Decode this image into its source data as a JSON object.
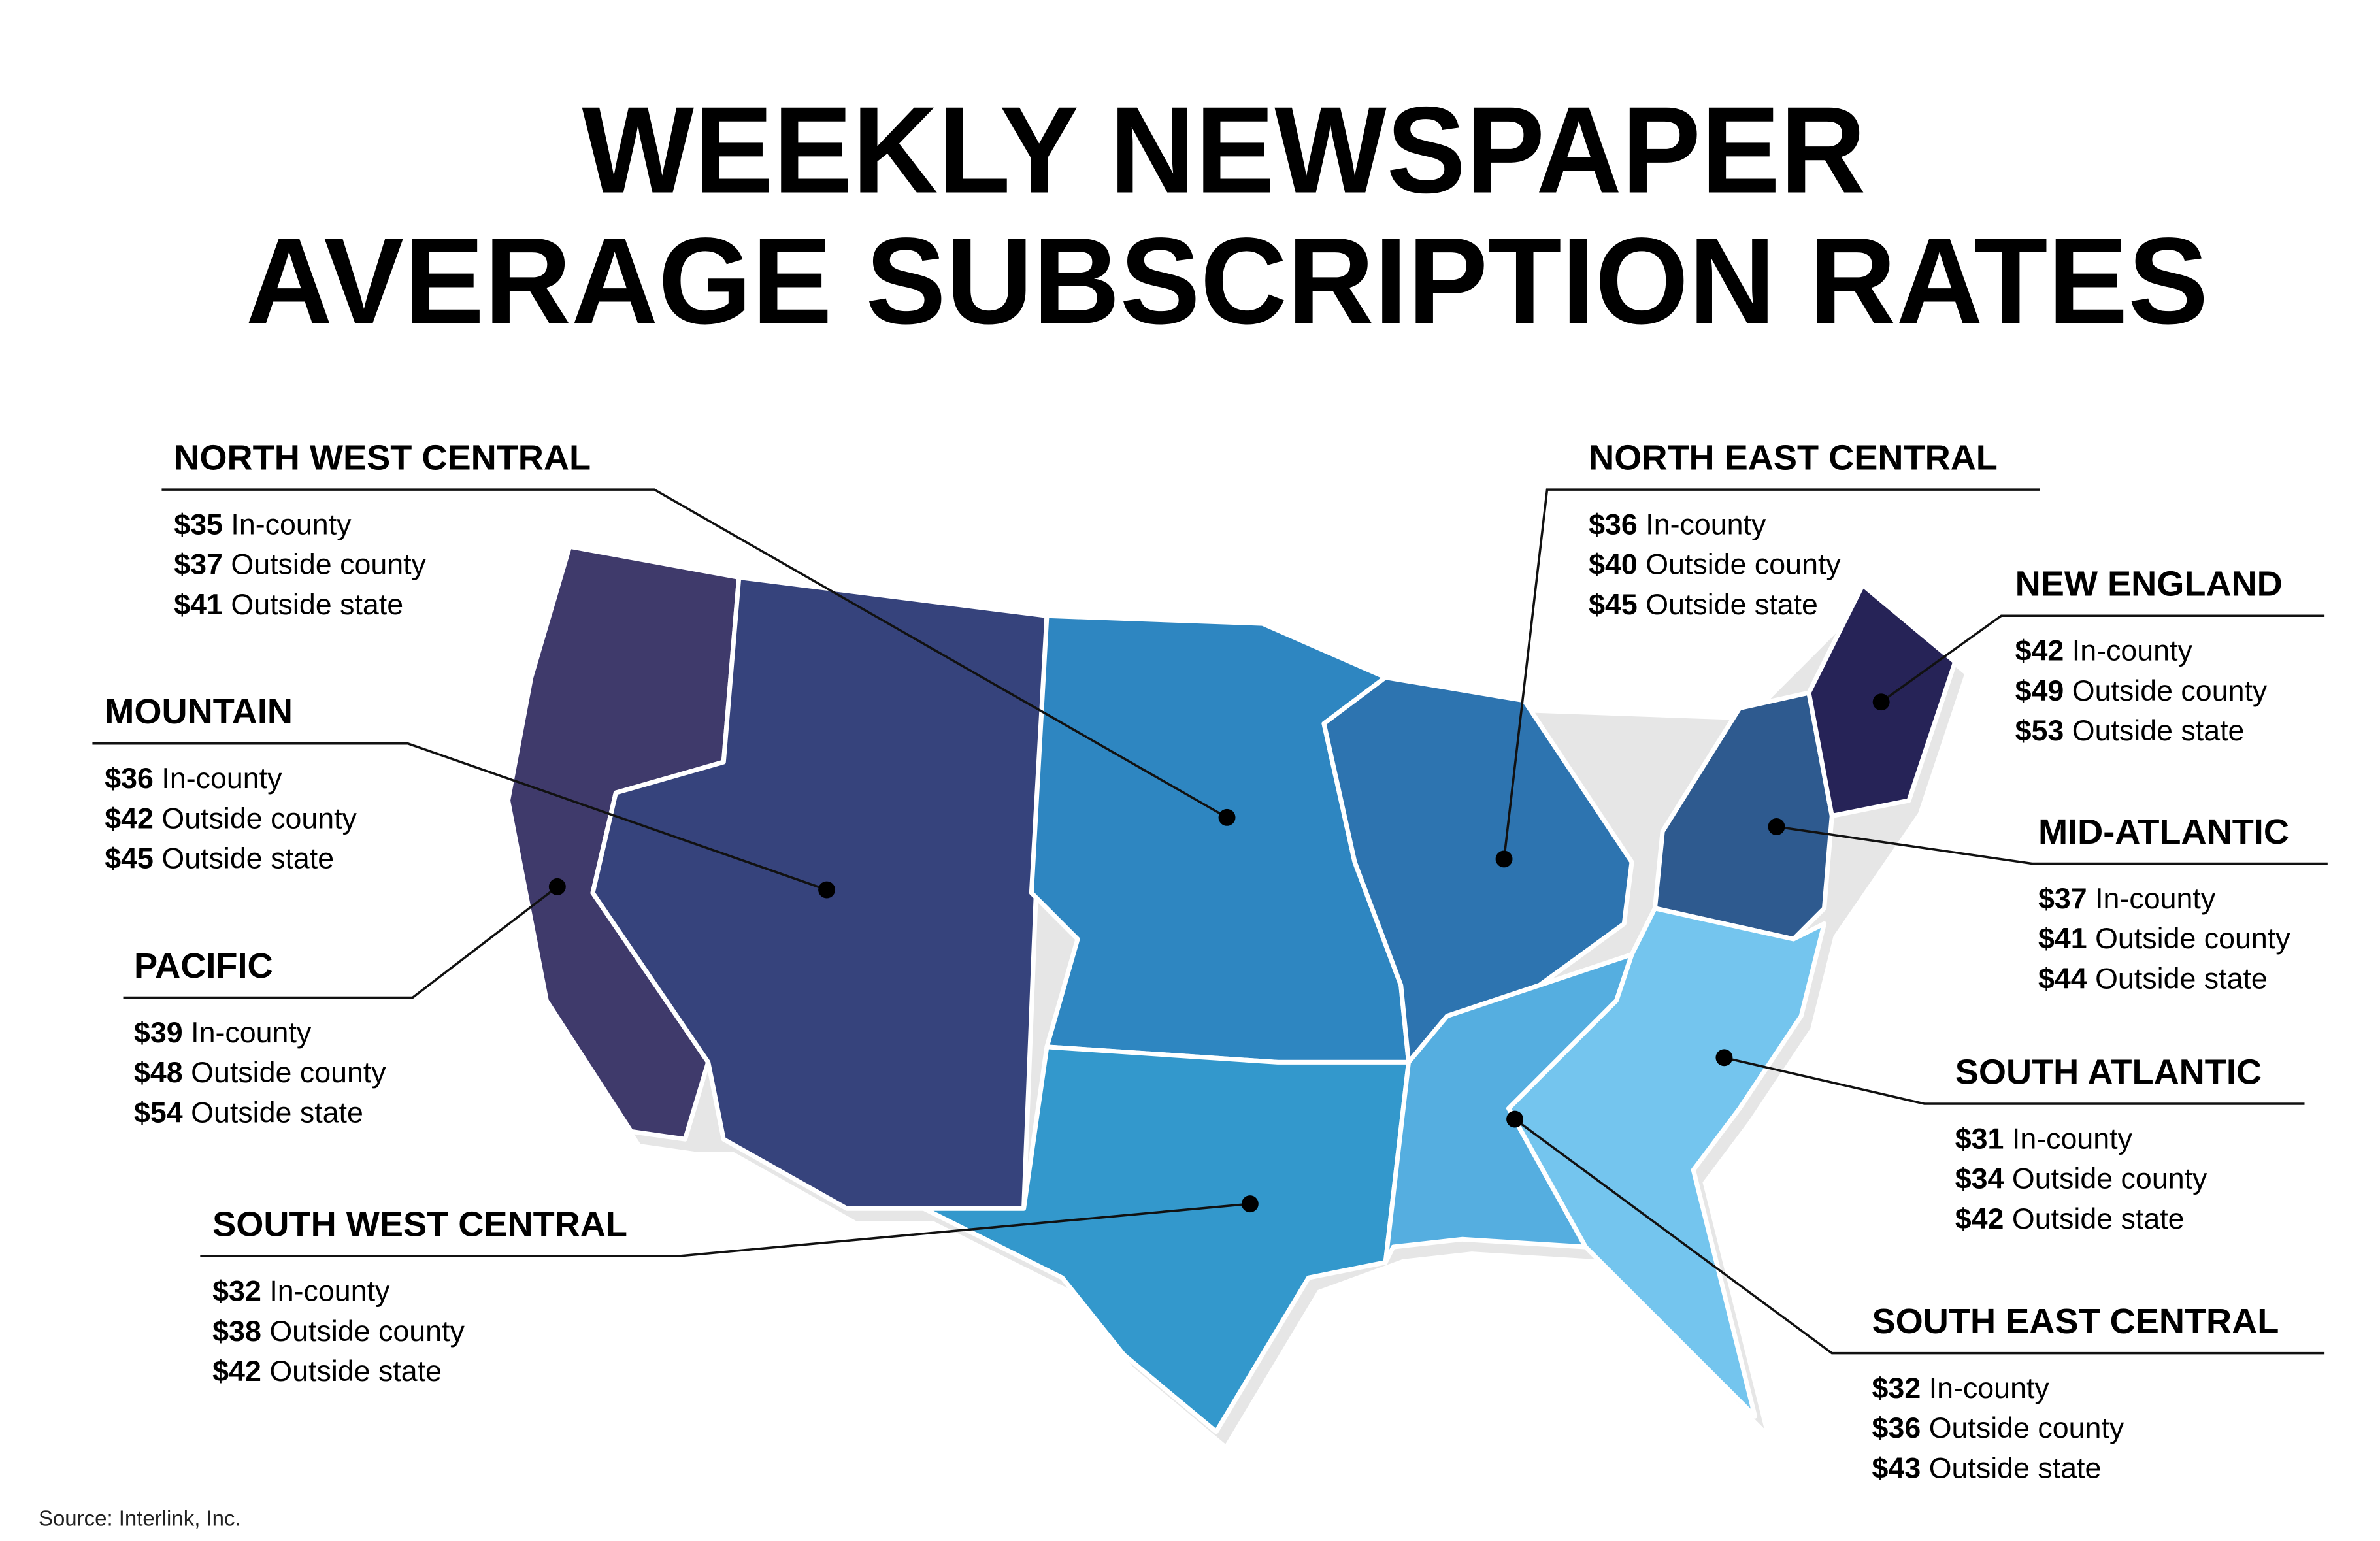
{
  "header": {
    "title_lines": [
      "WEEKLY NEWSPAPER",
      "AVERAGE SUBSCRIPTION RATES"
    ]
  },
  "regions": [
    {
      "name": "NORTH WEST CENTRAL",
      "rates": [
        {
          "price": "$35",
          "label": "In-county"
        },
        {
          "price": "$37",
          "label": "Outside county"
        },
        {
          "price": "$41",
          "label": "Outside state"
        }
      ]
    },
    {
      "name": "MOUNTAIN",
      "rates": [
        {
          "price": "$36",
          "label": "In-county"
        },
        {
          "price": "$42",
          "label": "Outside county"
        },
        {
          "price": "$45",
          "label": "Outside state"
        }
      ]
    },
    {
      "name": "PACIFIC",
      "rates": [
        {
          "price": "$39",
          "label": "In-county"
        },
        {
          "price": "$48",
          "label": "Outside county"
        },
        {
          "price": "$54",
          "label": "Outside state"
        }
      ]
    },
    {
      "name": "SOUTH WEST CENTRAL",
      "rates": [
        {
          "price": "$32",
          "label": "In-county"
        },
        {
          "price": "$38",
          "label": "Outside county"
        },
        {
          "price": "$42",
          "label": "Outside state"
        }
      ]
    },
    {
      "name": "NORTH EAST CENTRAL",
      "rates": [
        {
          "price": "$36",
          "label": "In-county"
        },
        {
          "price": "$40",
          "label": "Outside county"
        },
        {
          "price": "$45",
          "label": "Outside state"
        }
      ]
    },
    {
      "name": "NEW ENGLAND",
      "rates": [
        {
          "price": "$42",
          "label": "In-county"
        },
        {
          "price": "$49",
          "label": "Outside county"
        },
        {
          "price": "$53",
          "label": "Outside state"
        }
      ]
    },
    {
      "name": "MID-ATLANTIC",
      "rates": [
        {
          "price": "$37",
          "label": "In-county"
        },
        {
          "price": "$41",
          "label": "Outside county"
        },
        {
          "price": "$44",
          "label": "Outside state"
        }
      ]
    },
    {
      "name": "SOUTH ATLANTIC",
      "rates": [
        {
          "price": "$31",
          "label": "In-county"
        },
        {
          "price": "$34",
          "label": "Outside county"
        },
        {
          "price": "$42",
          "label": "Outside state"
        }
      ]
    },
    {
      "name": "SOUTH EAST CENTRAL",
      "rates": [
        {
          "price": "$32",
          "label": "In-county"
        },
        {
          "price": "$36",
          "label": "Outside county"
        },
        {
          "price": "$43",
          "label": "Outside state"
        }
      ]
    }
  ],
  "footer": {
    "source": "Source: Interlink, Inc."
  }
}
